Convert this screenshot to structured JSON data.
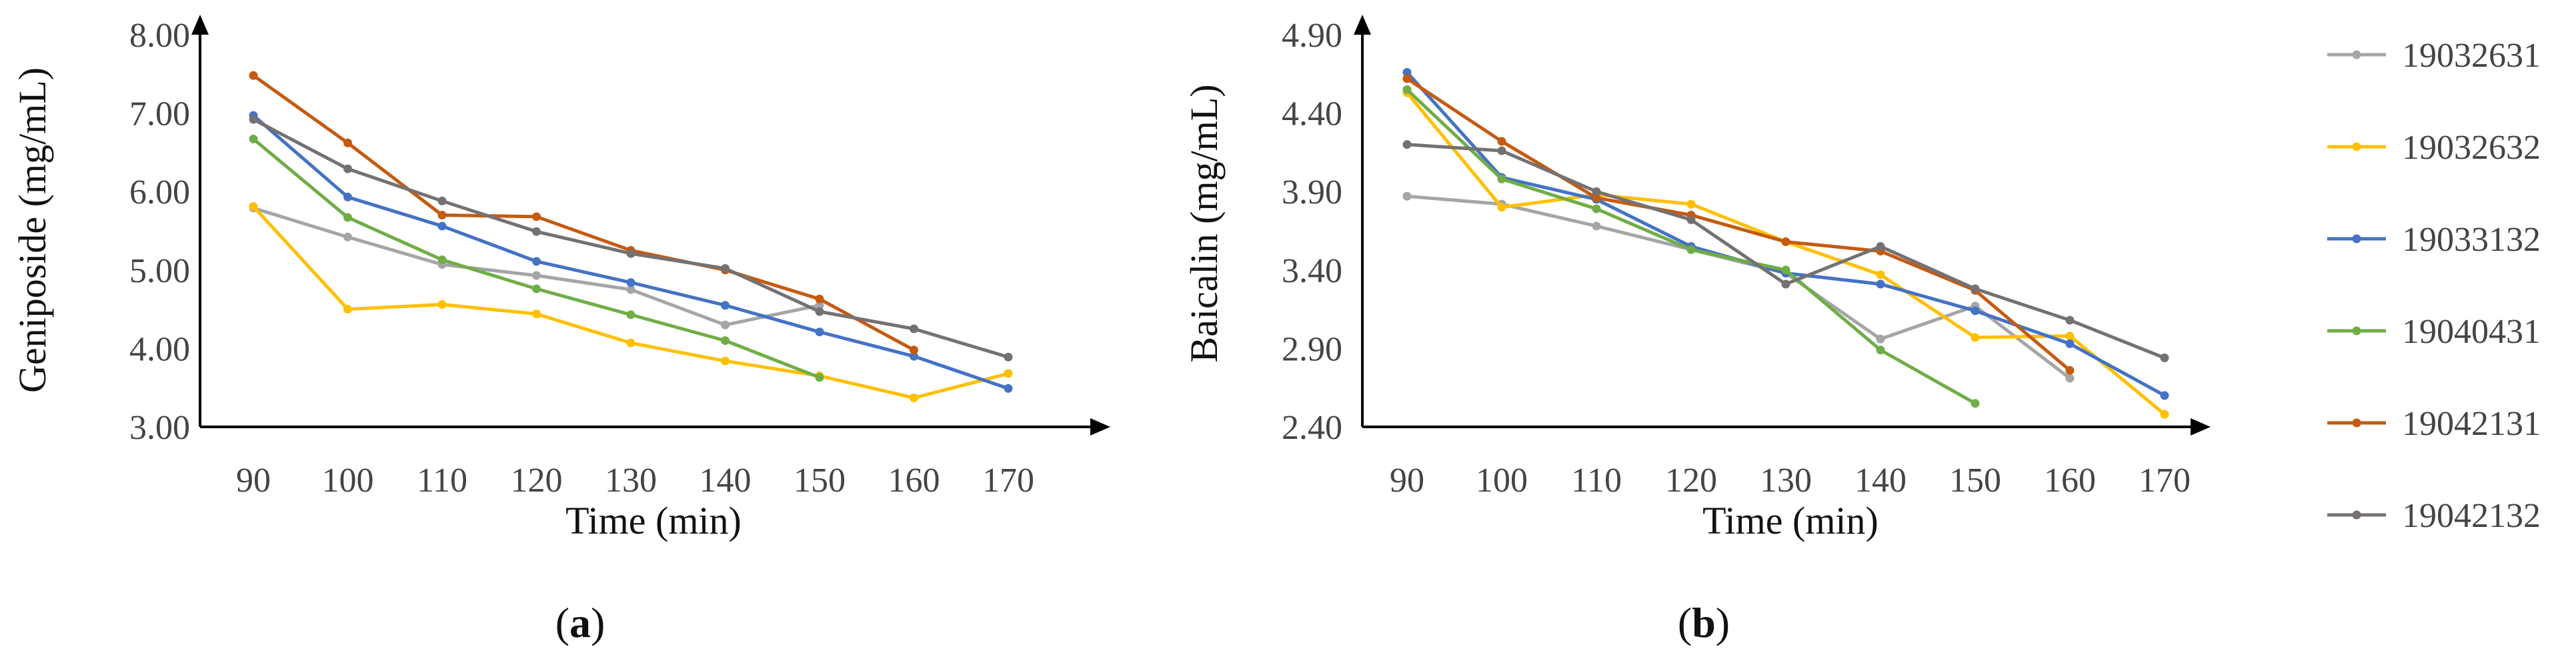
{
  "chart_data": [
    {
      "type": "line",
      "panel_label": "(a)",
      "panel_letter": "a",
      "xlabel": "Time (min)",
      "ylabel": "Geniposide  (mg/mL)",
      "x": [
        90,
        100,
        110,
        120,
        130,
        140,
        150,
        160,
        170
      ],
      "x_tick_labels": [
        "90",
        "100",
        "110",
        "120",
        "130",
        "140",
        "150",
        "160",
        "170"
      ],
      "y_tick_labels": [
        "3.00",
        "4.00",
        "5.00",
        "6.00",
        "7.00",
        "8.00"
      ],
      "ylim": [
        3.0,
        8.0
      ],
      "series": [
        {
          "name": "19032631",
          "color": "#a5a5a5",
          "values": [
            5.79,
            5.42,
            5.07,
            4.93,
            4.75,
            4.3,
            4.55,
            null,
            null
          ]
        },
        {
          "name": "19032632",
          "color": "#ffc000",
          "values": [
            5.81,
            4.5,
            4.56,
            4.44,
            4.07,
            3.84,
            3.65,
            3.37,
            3.68
          ]
        },
        {
          "name": "19033132",
          "color": "#4472c4",
          "values": [
            6.97,
            5.93,
            5.56,
            5.11,
            4.84,
            4.55,
            4.21,
            3.9,
            3.49
          ]
        },
        {
          "name": "19040431",
          "color": "#70ad47",
          "values": [
            6.67,
            5.67,
            5.13,
            4.76,
            4.43,
            4.1,
            3.63,
            null,
            null
          ]
        },
        {
          "name": "19042131",
          "color": "#c55a11",
          "values": [
            7.48,
            6.62,
            5.7,
            5.68,
            5.25,
            5.0,
            4.63,
            3.98,
            null
          ]
        },
        {
          "name": "19042132",
          "color": "#767171",
          "values": [
            6.92,
            6.29,
            5.88,
            5.49,
            5.21,
            5.02,
            4.47,
            4.25,
            3.89
          ]
        }
      ]
    },
    {
      "type": "line",
      "panel_label": "(b)",
      "panel_letter": "b",
      "xlabel": "Time (min)",
      "ylabel": "Baicalin  (mg/mL)",
      "x": [
        90,
        100,
        110,
        120,
        130,
        140,
        150,
        160,
        170
      ],
      "x_tick_labels": [
        "90",
        "100",
        "110",
        "120",
        "130",
        "140",
        "150",
        "160",
        "170"
      ],
      "y_tick_labels": [
        "2.40",
        "2.90",
        "3.40",
        "3.90",
        "4.40",
        "4.90"
      ],
      "ylim": [
        2.4,
        4.9
      ],
      "series": [
        {
          "name": "19032631",
          "color": "#a5a5a5",
          "values": [
            3.87,
            3.82,
            3.68,
            3.53,
            3.38,
            2.96,
            3.17,
            2.71,
            null
          ]
        },
        {
          "name": "19032632",
          "color": "#ffc000",
          "values": [
            4.53,
            3.8,
            3.88,
            3.82,
            3.58,
            3.37,
            2.97,
            2.98,
            2.48
          ]
        },
        {
          "name": "19033132",
          "color": "#4472c4",
          "values": [
            4.66,
            3.99,
            3.85,
            3.55,
            3.38,
            3.31,
            3.14,
            2.93,
            2.6
          ]
        },
        {
          "name": "19040431",
          "color": "#70ad47",
          "values": [
            4.55,
            3.98,
            3.79,
            3.53,
            3.4,
            2.89,
            2.55,
            null,
            null
          ]
        },
        {
          "name": "19042131",
          "color": "#c55a11",
          "values": [
            4.62,
            4.22,
            3.86,
            3.75,
            3.58,
            3.52,
            3.27,
            2.76,
            null
          ]
        },
        {
          "name": "19042132",
          "color": "#767171",
          "values": [
            4.2,
            4.16,
            3.9,
            3.72,
            3.31,
            3.55,
            3.28,
            3.08,
            2.84
          ]
        }
      ]
    }
  ],
  "legend": {
    "placement": "right",
    "items": [
      "19032631",
      "19032632",
      "19033132",
      "19040431",
      "19042131",
      "19042132"
    ]
  }
}
